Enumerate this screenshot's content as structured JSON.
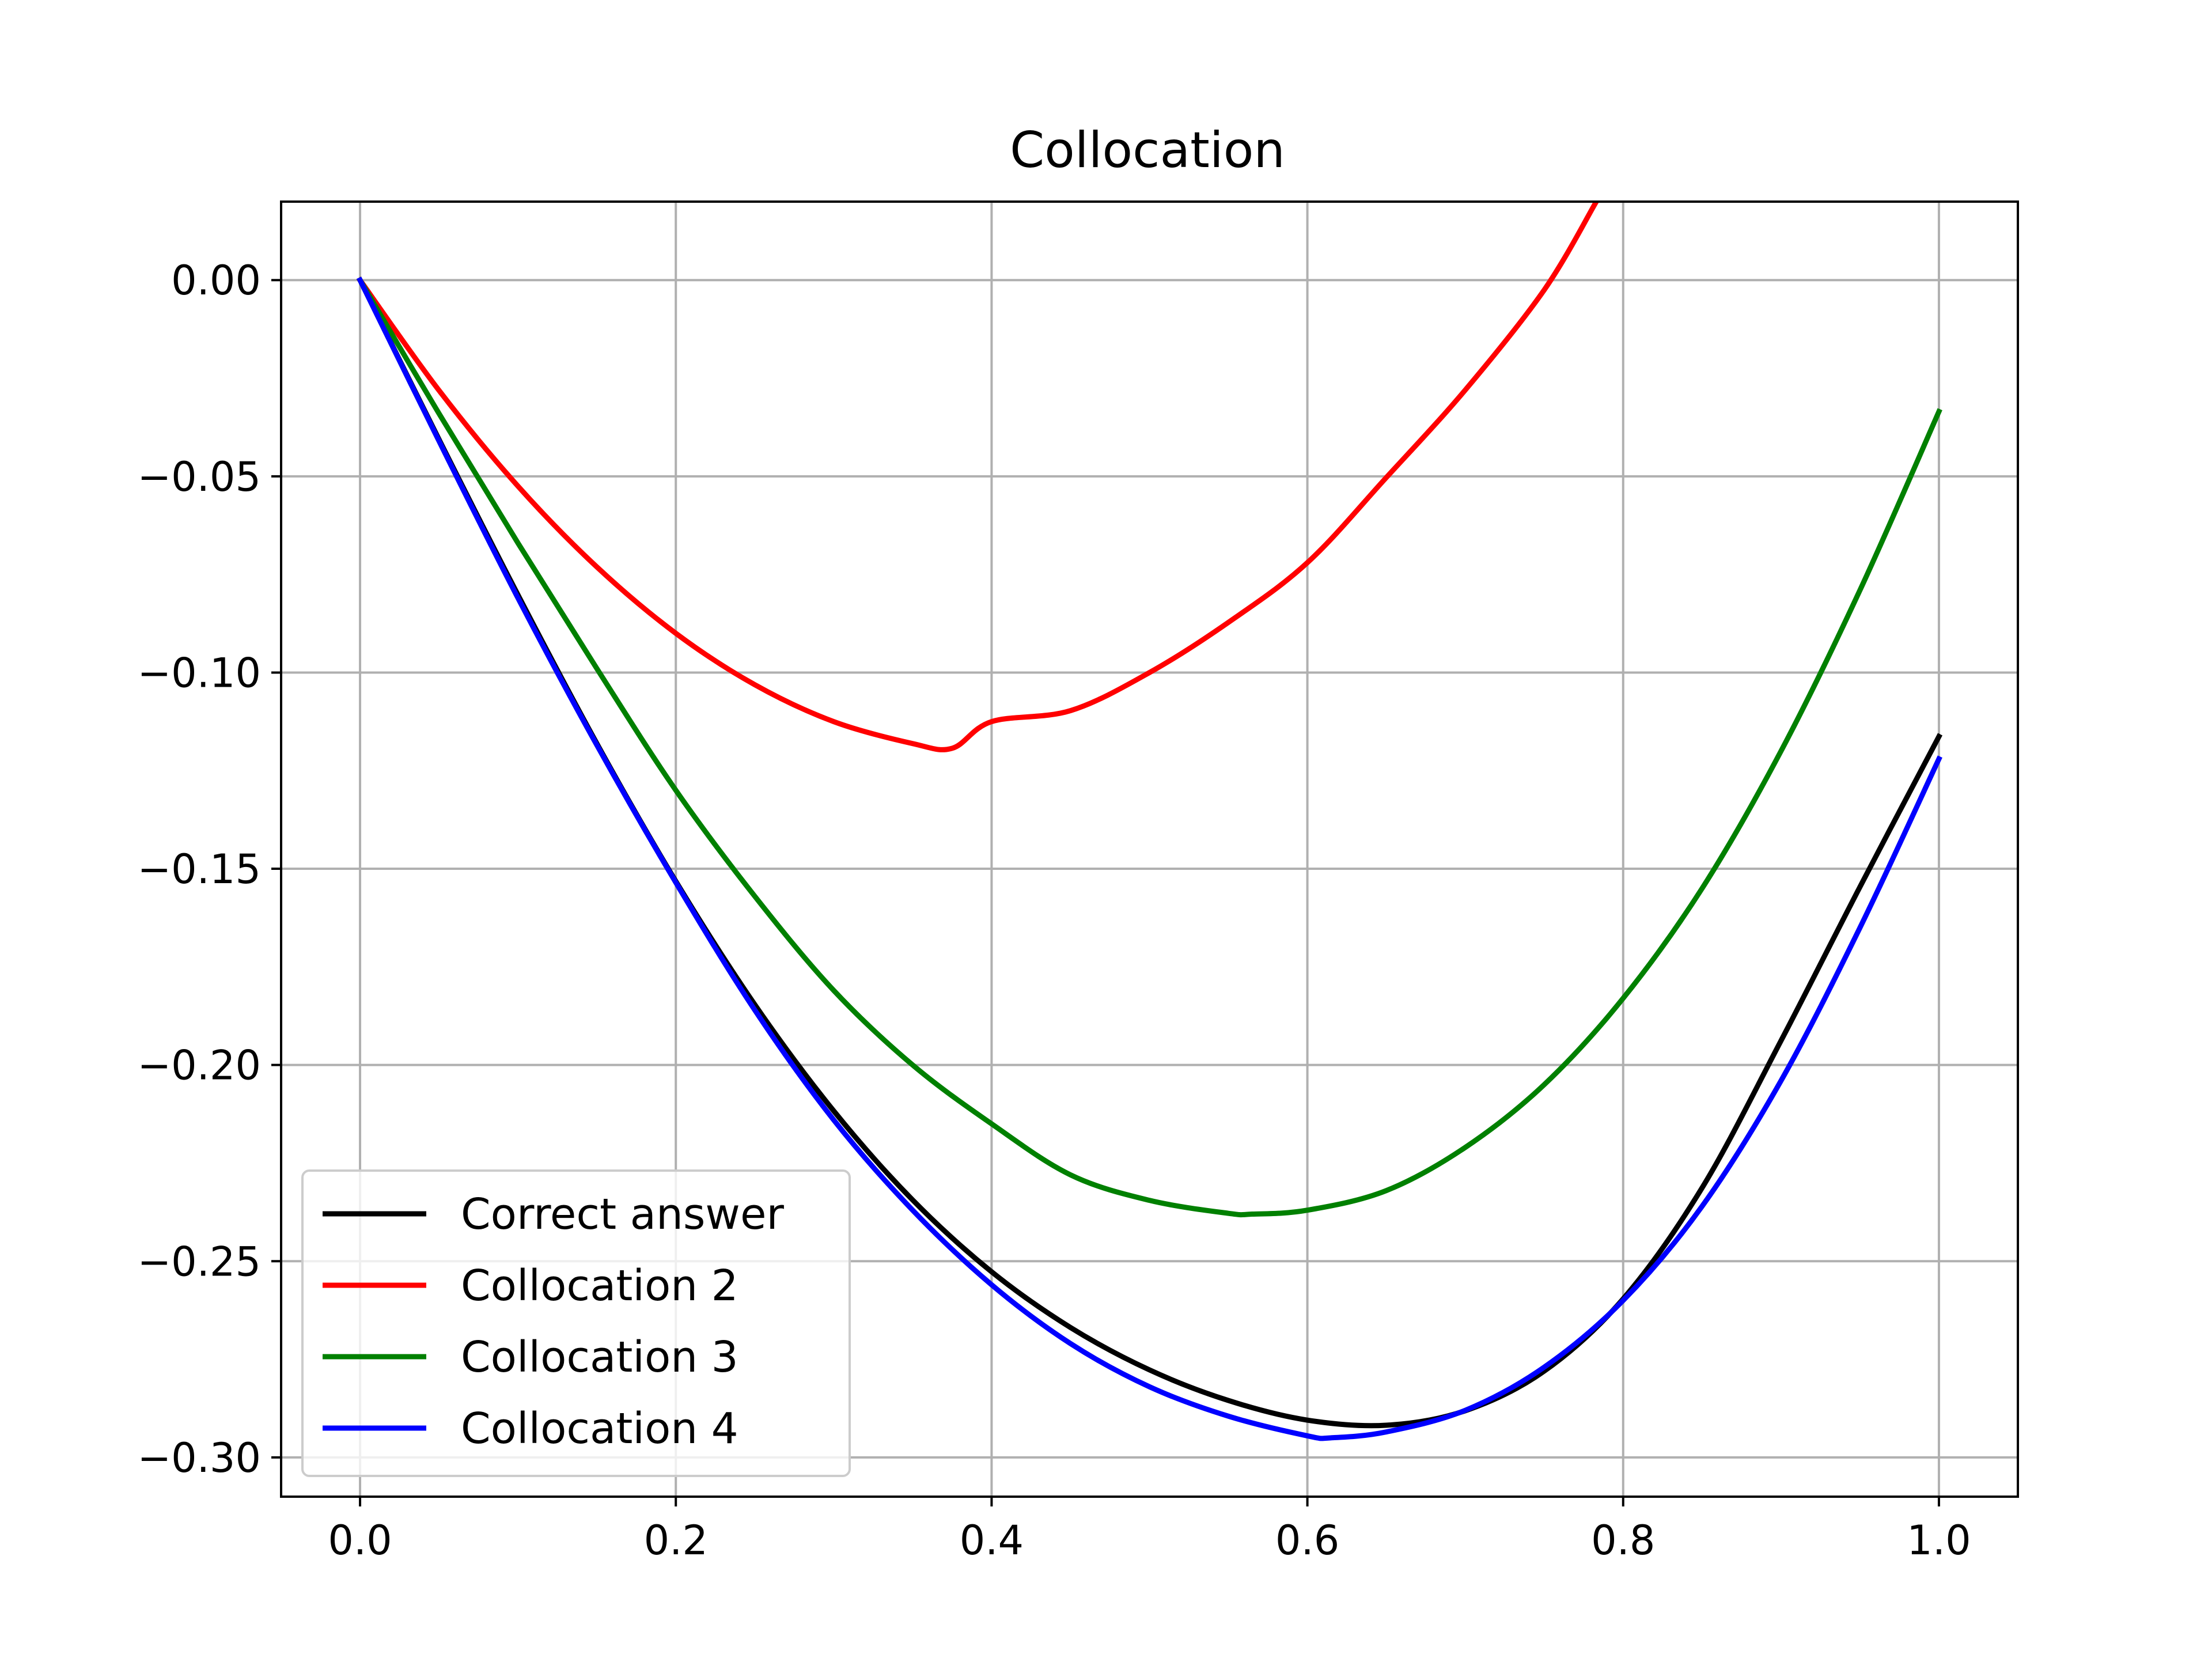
{
  "chart_data": {
    "type": "line",
    "title": "Collocation",
    "xlabel": "",
    "ylabel": "",
    "xlim": [
      -0.05,
      1.05
    ],
    "ylim": [
      -0.31,
      0.02
    ],
    "x_ticks": [
      0.0,
      0.2,
      0.4,
      0.6,
      0.8,
      1.0
    ],
    "x_tick_labels": [
      "0.0",
      "0.2",
      "0.4",
      "0.6",
      "0.8",
      "1.0"
    ],
    "y_ticks": [
      0.0,
      -0.05,
      -0.1,
      -0.15,
      -0.2,
      -0.25,
      -0.3
    ],
    "y_tick_labels": [
      "0.00",
      "−0.05",
      "−0.10",
      "−0.15",
      "−0.20",
      "−0.25",
      "−0.30"
    ],
    "grid": true,
    "legend_position": "lower-left",
    "series": [
      {
        "name": "Correct answer",
        "color": "#000000",
        "x": [
          0.0,
          0.05,
          0.1,
          0.15,
          0.2,
          0.25,
          0.3,
          0.35,
          0.4,
          0.45,
          0.5,
          0.55,
          0.6,
          0.65,
          0.7,
          0.75,
          0.8,
          0.85,
          0.9,
          0.95,
          1.0
        ],
        "y": [
          0.0,
          -0.0406,
          -0.0802,
          -0.1181,
          -0.1532,
          -0.1846,
          -0.2117,
          -0.2344,
          -0.2527,
          -0.2669,
          -0.2777,
          -0.2855,
          -0.2905,
          -0.2918,
          -0.2881,
          -0.278,
          -0.2596,
          -0.2313,
          -0.1938,
          -0.1546,
          -0.1163
        ]
      },
      {
        "name": "Collocation 2",
        "color": "#ff0000",
        "x": [
          0.0,
          0.05,
          0.1,
          0.15,
          0.2,
          0.25,
          0.3,
          0.35,
          0.375,
          0.4,
          0.45,
          0.5,
          0.55,
          0.6,
          0.65,
          0.7,
          0.75,
          0.783
        ],
        "y": [
          0.0,
          -0.0281,
          -0.0525,
          -0.0731,
          -0.09,
          -0.1031,
          -0.1125,
          -0.1181,
          -0.1193,
          -0.1125,
          -0.1097,
          -0.1,
          -0.0872,
          -0.072,
          -0.0503,
          -0.028,
          -0.0025,
          0.02
        ]
      },
      {
        "name": "Collocation 3",
        "color": "#008000",
        "x": [
          0.0,
          0.05,
          0.1,
          0.15,
          0.2,
          0.25,
          0.3,
          0.35,
          0.4,
          0.45,
          0.5,
          0.55,
          0.565,
          0.6,
          0.65,
          0.7,
          0.75,
          0.8,
          0.85,
          0.9,
          0.95,
          1.0
        ],
        "y": [
          0.0,
          -0.034,
          -0.067,
          -0.099,
          -0.13,
          -0.157,
          -0.181,
          -0.2,
          -0.215,
          -0.228,
          -0.2345,
          -0.2378,
          -0.238,
          -0.237,
          -0.232,
          -0.221,
          -0.205,
          -0.183,
          -0.155,
          -0.12,
          -0.079,
          -0.0335
        ]
      },
      {
        "name": "Collocation 4",
        "color": "#0000ff",
        "x": [
          0.0,
          0.05,
          0.1,
          0.15,
          0.2,
          0.25,
          0.3,
          0.35,
          0.4,
          0.45,
          0.5,
          0.55,
          0.6,
          0.615,
          0.65,
          0.7,
          0.75,
          0.8,
          0.85,
          0.9,
          0.95,
          1.0
        ],
        "y": [
          0.0,
          -0.041,
          -0.081,
          -0.1185,
          -0.1535,
          -0.186,
          -0.214,
          -0.237,
          -0.256,
          -0.271,
          -0.282,
          -0.2895,
          -0.2945,
          -0.295,
          -0.2935,
          -0.288,
          -0.277,
          -0.26,
          -0.236,
          -0.204,
          -0.165,
          -0.122
        ]
      }
    ]
  }
}
